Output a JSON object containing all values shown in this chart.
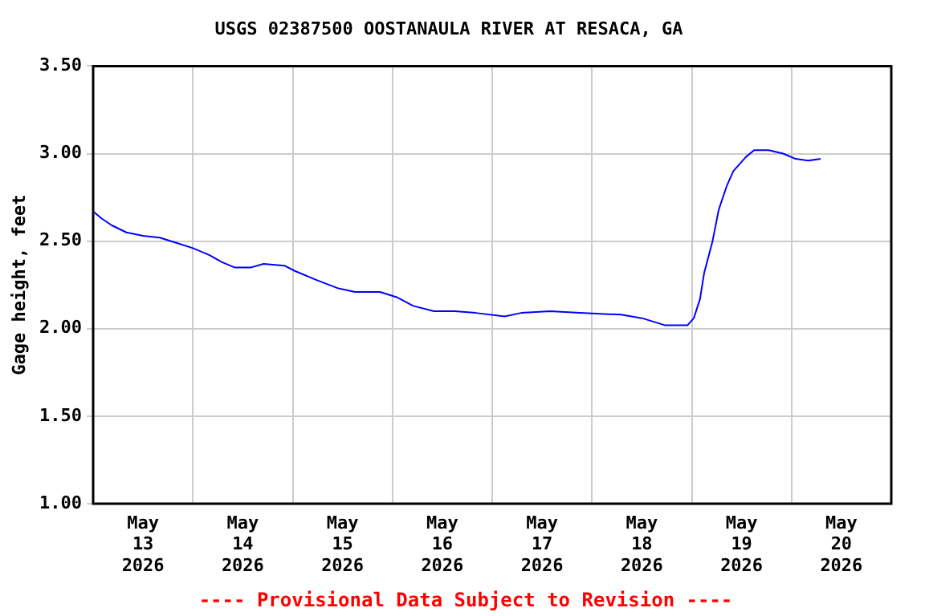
{
  "chart_data": {
    "type": "line",
    "title": "USGS 02387500 OOSTANAULA RIVER AT RESACA, GA",
    "ylabel": "Gage height, feet",
    "annotations": [
      "---- Provisional Data Subject to Revision ----"
    ],
    "x": [
      "2026-05-13T00:00",
      "2026-05-13T02:00",
      "2026-05-13T04:30",
      "2026-05-13T08:00",
      "2026-05-13T12:00",
      "2026-05-13T16:00",
      "2026-05-13T20:00",
      "2026-05-14T00:00",
      "2026-05-14T04:00",
      "2026-05-14T07:00",
      "2026-05-14T10:00",
      "2026-05-14T14:00",
      "2026-05-14T17:00",
      "2026-05-14T22:00",
      "2026-05-15T00:30",
      "2026-05-15T05:30",
      "2026-05-15T11:00",
      "2026-05-15T15:00",
      "2026-05-15T21:00",
      "2026-05-16T01:00",
      "2026-05-16T05:00",
      "2026-05-16T10:00",
      "2026-05-16T15:00",
      "2026-05-16T20:00",
      "2026-05-17T03:00",
      "2026-05-17T07:00",
      "2026-05-17T14:00",
      "2026-05-17T21:00",
      "2026-05-18T07:00",
      "2026-05-18T12:00",
      "2026-05-18T17:30",
      "2026-05-18T23:00",
      "2026-05-19T00:30",
      "2026-05-19T02:00",
      "2026-05-19T03:00",
      "2026-05-19T05:00",
      "2026-05-19T06:30",
      "2026-05-19T08:30",
      "2026-05-19T10:00",
      "2026-05-19T13:00",
      "2026-05-19T15:00",
      "2026-05-19T18:30",
      "2026-05-19T22:00",
      "2026-05-20T01:00",
      "2026-05-20T04:00",
      "2026-05-20T07:00"
    ],
    "series": [
      {
        "color": "#0000ff",
        "values": [
          2.67,
          2.63,
          2.59,
          2.55,
          2.53,
          2.52,
          2.49,
          2.46,
          2.42,
          2.38,
          2.35,
          2.35,
          2.37,
          2.36,
          2.33,
          2.28,
          2.23,
          2.21,
          2.21,
          2.18,
          2.13,
          2.1,
          2.1,
          2.09,
          2.07,
          2.09,
          2.1,
          2.09,
          2.08,
          2.06,
          2.02,
          2.02,
          2.06,
          2.17,
          2.32,
          2.5,
          2.68,
          2.82,
          2.9,
          2.98,
          3.02,
          3.02,
          3.0,
          2.97,
          2.96,
          2.97
        ]
      }
    ],
    "xlim": [
      "2026-05-13T00:00",
      "2026-05-21T00:00"
    ],
    "xticks": [
      {
        "value": "2026-05-13T12:00",
        "label": "May\n13\n2026"
      },
      {
        "value": "2026-05-14T00:00",
        "label": null
      },
      {
        "value": "2026-05-14T12:00",
        "label": "May\n14\n2026"
      },
      {
        "value": "2026-05-15T00:00",
        "label": null
      },
      {
        "value": "2026-05-15T12:00",
        "label": "May\n15\n2026"
      },
      {
        "value": "2026-05-16T00:00",
        "label": null
      },
      {
        "value": "2026-05-16T12:00",
        "label": "May\n16\n2026"
      },
      {
        "value": "2026-05-17T00:00",
        "label": null
      },
      {
        "value": "2026-05-17T12:00",
        "label": "May\n17\n2026"
      },
      {
        "value": "2026-05-18T00:00",
        "label": null
      },
      {
        "value": "2026-05-18T12:00",
        "label": "May\n18\n2026"
      },
      {
        "value": "2026-05-19T00:00",
        "label": null
      },
      {
        "value": "2026-05-19T12:00",
        "label": "May\n19\n2026"
      },
      {
        "value": "2026-05-20T00:00",
        "label": null
      },
      {
        "value": "2026-05-20T12:00",
        "label": "May\n20\n2026"
      }
    ],
    "ylim": [
      1.0,
      3.5
    ],
    "yticks": [
      {
        "value": 1.0,
        "label": "1.00"
      },
      {
        "value": 1.5,
        "label": "1.50"
      },
      {
        "value": 2.0,
        "label": "2.00"
      },
      {
        "value": 2.5,
        "label": "2.50"
      },
      {
        "value": 3.0,
        "label": "3.00"
      },
      {
        "value": 3.5,
        "label": "3.50"
      }
    ],
    "grid": true,
    "marker": "none",
    "line_style": "solid"
  }
}
